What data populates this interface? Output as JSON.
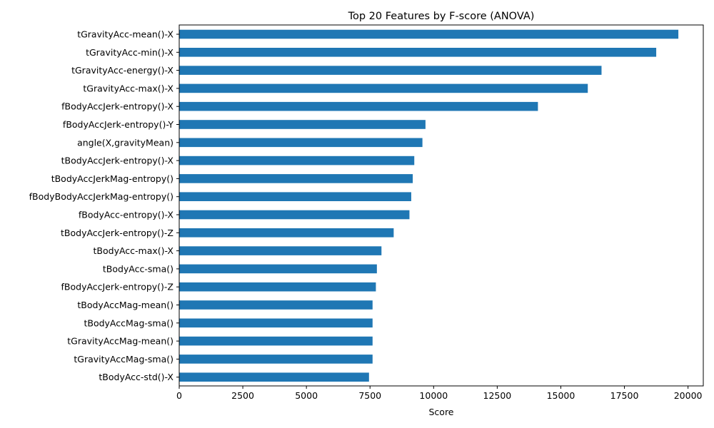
{
  "chart_data": {
    "type": "bar",
    "orientation": "horizontal",
    "title": "Top 20 Features by F-score (ANOVA)",
    "xlabel": "Score",
    "ylabel": "",
    "xlim": [
      0,
      20600
    ],
    "xticks": [
      0,
      2500,
      5000,
      7500,
      10000,
      12500,
      15000,
      17500,
      20000
    ],
    "bar_color": "#1f77b4",
    "grid": false,
    "categories": [
      "tGravityAcc-mean()-X",
      "tGravityAcc-min()-X",
      "tGravityAcc-energy()-X",
      "tGravityAcc-max()-X",
      "fBodyAccJerk-entropy()-X",
      "fBodyAccJerk-entropy()-Y",
      "angle(X,gravityMean)",
      "tBodyAccJerk-entropy()-X",
      "tBodyAccJerkMag-entropy()",
      "fBodyBodyAccJerkMag-entropy()",
      "fBodyAcc-entropy()-X",
      "tBodyAccJerk-entropy()-Z",
      "tBodyAcc-max()-X",
      "tBodyAcc-sma()",
      "fBodyAccJerk-entropy()-Z",
      "tBodyAccMag-mean()",
      "tBodyAccMag-sma()",
      "tGravityAccMag-mean()",
      "tGravityAccMag-sma()",
      "tBodyAcc-std()-X"
    ],
    "values": [
      19620,
      18750,
      16600,
      16060,
      14100,
      9680,
      9560,
      9240,
      9180,
      9120,
      9050,
      8430,
      7950,
      7770,
      7730,
      7600,
      7600,
      7600,
      7600,
      7460
    ]
  }
}
